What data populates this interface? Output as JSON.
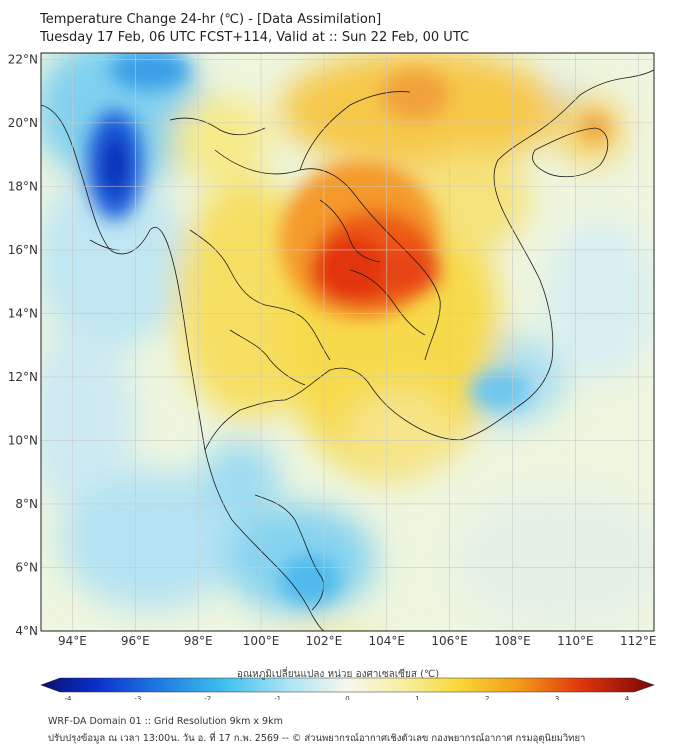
{
  "title": {
    "line1": "Temperature Change 24-hr (℃) - [Data Assimilation]",
    "line2": "Tuesday 17 Feb, 06 UTC FCST+114, Valid at :: Sun 22 Feb, 00 UTC"
  },
  "map": {
    "lon_range": [
      93,
      112.5
    ],
    "lat_range": [
      4,
      22.2
    ],
    "lat_labels": [
      "22°N",
      "20°N",
      "18°N",
      "16°N",
      "14°N",
      "12°N",
      "10°N",
      "8°N",
      "6°N",
      "4°N"
    ],
    "lon_labels": [
      "94°E",
      "96°E",
      "98°E",
      "100°E",
      "102°E",
      "104°E",
      "106°E",
      "108°E",
      "110°E",
      "112°E"
    ],
    "lat_values": [
      22,
      20,
      18,
      16,
      14,
      12,
      10,
      8,
      6,
      4
    ],
    "lon_values": [
      94,
      96,
      98,
      100,
      102,
      104,
      106,
      108,
      110,
      112
    ]
  },
  "colorbar": {
    "title": "อุณหภูมิเปลี่ยนแปลง หน่วย องศาเซลเซียส (℃)",
    "ticks": [
      "-4",
      "-3",
      "-2",
      "-1",
      "0",
      "1",
      "2",
      "3",
      "4"
    ],
    "tick_values": [
      -4,
      -3,
      -2,
      -1,
      0,
      1,
      2,
      3,
      4
    ],
    "range": [
      -4,
      4
    ]
  },
  "footer": {
    "line1": "WRF-DA Domain 01 :: Grid Resolution 9km x 9km",
    "line2": "ปรับปรุงข้อมูล ณ เวลา 13:00น. วัน อ. ที่ 17 ก.พ. 2569 -- © ส่วนพยากรณ์อากาศเชิงตัวเลข กองพยากรณ์อากาศ กรมอุตุนิยมวิทยา"
  },
  "colors": {
    "cold_max": "#0a1a9c",
    "cold": "#3fb8ea",
    "neutral": "#f6f7dc",
    "warm": "#f6e25a",
    "hot": "#f08b1a",
    "hot_max": "#d11b0c"
  }
}
